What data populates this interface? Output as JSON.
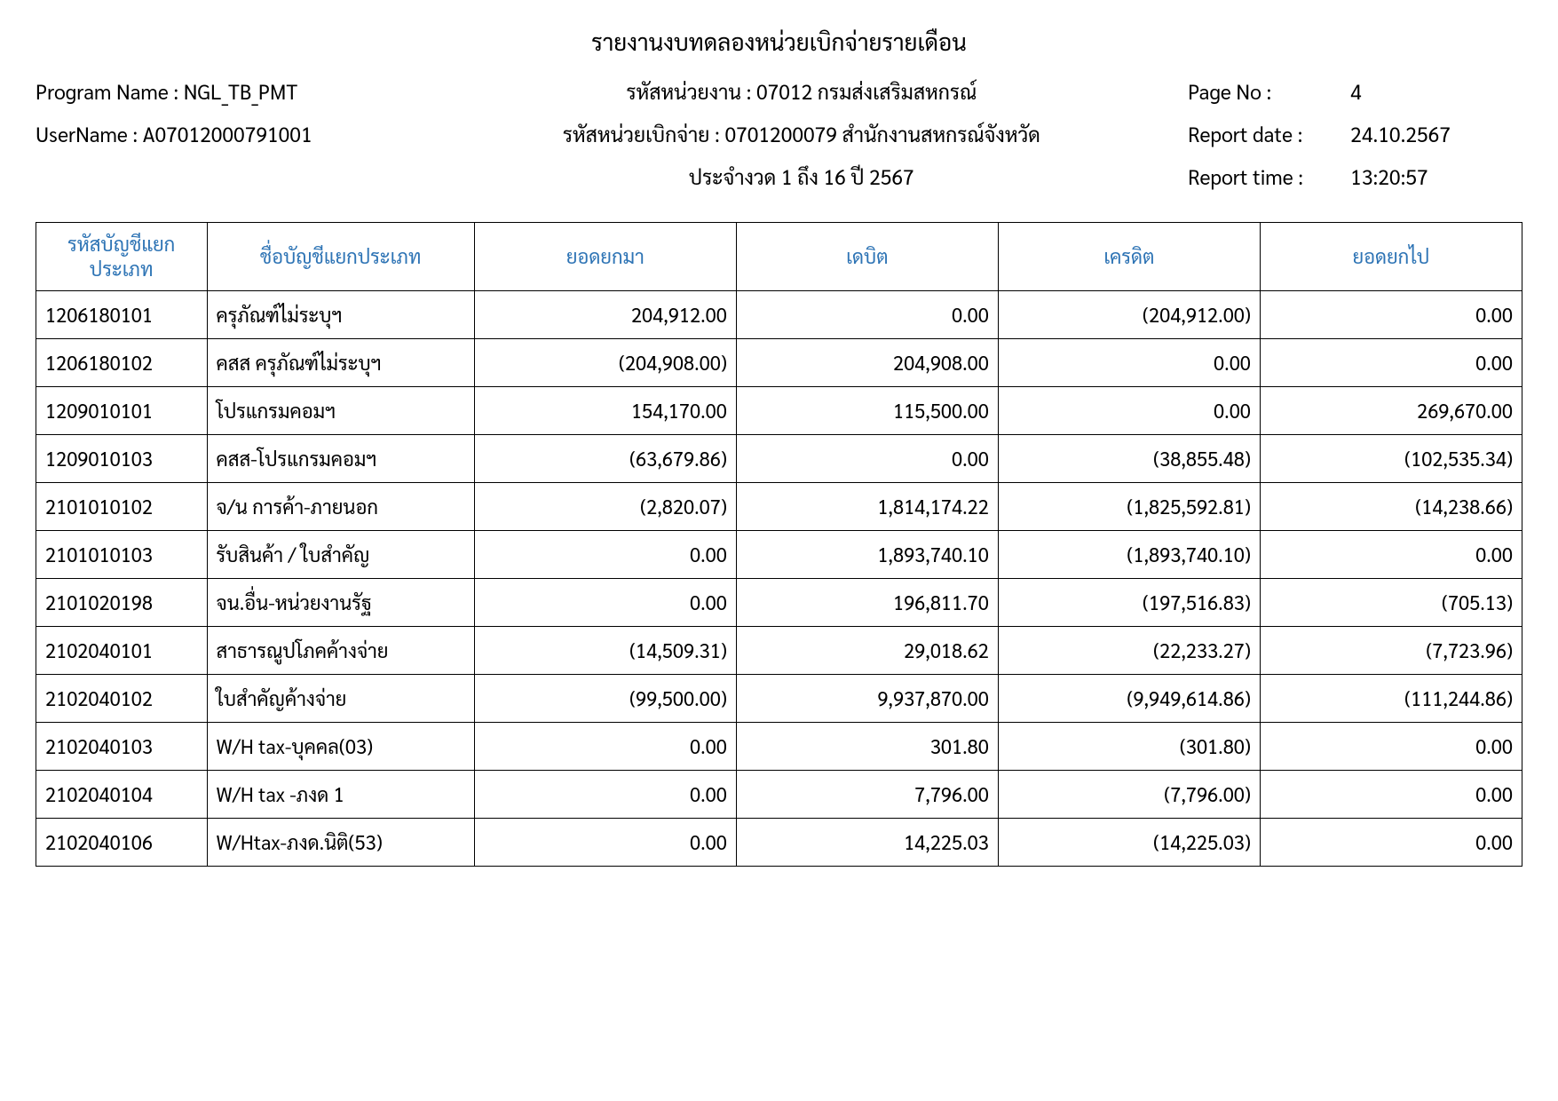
{
  "report": {
    "title": "รายงานงบทดลองหน่วยเบิกจ่ายรายเดือน",
    "program_label": "Program Name : NGL_TB_PMT",
    "username_label": "UserName : A07012000791001",
    "agency_line": "รหัสหน่วยงาน : 07012 กรมส่งเสริมสหกรณ์",
    "disburse_line": "รหัสหน่วยเบิกจ่าย : 0701200079 สำนักงานสหกรณ์จังหวัด",
    "period_line": "ประจำงวด 1 ถึง 16 ปี 2567",
    "page_no_label": "Page No :",
    "page_no_value": "4",
    "report_date_label": "Report date :",
    "report_date_value": "24.10.2567",
    "report_time_label": "Report time :",
    "report_time_value": "13:20:57"
  },
  "table": {
    "columns": [
      "รหัสบัญชีแยกประเภท",
      "ชื่อบัญชีแยกประเภท",
      "ยอดยกมา",
      "เดบิต",
      "เครดิต",
      "ยอดยกไป"
    ],
    "header_color": "#2e74b5",
    "border_color": "#000000",
    "rows": [
      {
        "code": "1206180101",
        "name": "ครุภัณฑ์ไม่ระบุฯ",
        "c1": "204,912.00",
        "c2": "0.00",
        "c3": "(204,912.00)",
        "c4": "0.00"
      },
      {
        "code": "1206180102",
        "name": "คสส ครุภัณฑ์ไม่ระบุฯ",
        "c1": "(204,908.00)",
        "c2": "204,908.00",
        "c3": "0.00",
        "c4": "0.00"
      },
      {
        "code": "1209010101",
        "name": "โปรแกรมคอมฯ",
        "c1": "154,170.00",
        "c2": "115,500.00",
        "c3": "0.00",
        "c4": "269,670.00"
      },
      {
        "code": "1209010103",
        "name": "คสส-โปรแกรมคอมฯ",
        "c1": "(63,679.86)",
        "c2": "0.00",
        "c3": "(38,855.48)",
        "c4": "(102,535.34)"
      },
      {
        "code": "2101010102",
        "name": "จ/น การค้า-ภายนอก",
        "c1": "(2,820.07)",
        "c2": "1,814,174.22",
        "c3": "(1,825,592.81)",
        "c4": "(14,238.66)"
      },
      {
        "code": "2101010103",
        "name": "รับสินค้า / ใบสำคัญ",
        "c1": "0.00",
        "c2": "1,893,740.10",
        "c3": "(1,893,740.10)",
        "c4": "0.00"
      },
      {
        "code": "2101020198",
        "name": "จน.อื่น-หน่วยงานรัฐ",
        "c1": "0.00",
        "c2": "196,811.70",
        "c3": "(197,516.83)",
        "c4": "(705.13)"
      },
      {
        "code": "2102040101",
        "name": "สาธารณูปโภคค้างจ่าย",
        "c1": "(14,509.31)",
        "c2": "29,018.62",
        "c3": "(22,233.27)",
        "c4": "(7,723.96)"
      },
      {
        "code": "2102040102",
        "name": "ใบสำคัญค้างจ่าย",
        "c1": "(99,500.00)",
        "c2": "9,937,870.00",
        "c3": "(9,949,614.86)",
        "c4": "(111,244.86)"
      },
      {
        "code": "2102040103",
        "name": "W/H tax-บุคคล(03)",
        "c1": "0.00",
        "c2": "301.80",
        "c3": "(301.80)",
        "c4": "0.00"
      },
      {
        "code": "2102040104",
        "name": "W/H tax -ภงด 1",
        "c1": "0.00",
        "c2": "7,796.00",
        "c3": "(7,796.00)",
        "c4": "0.00"
      },
      {
        "code": "2102040106",
        "name": "W/Htax-ภงด.นิติ(53)",
        "c1": "0.00",
        "c2": "14,225.03",
        "c3": "(14,225.03)",
        "c4": "0.00"
      }
    ]
  }
}
